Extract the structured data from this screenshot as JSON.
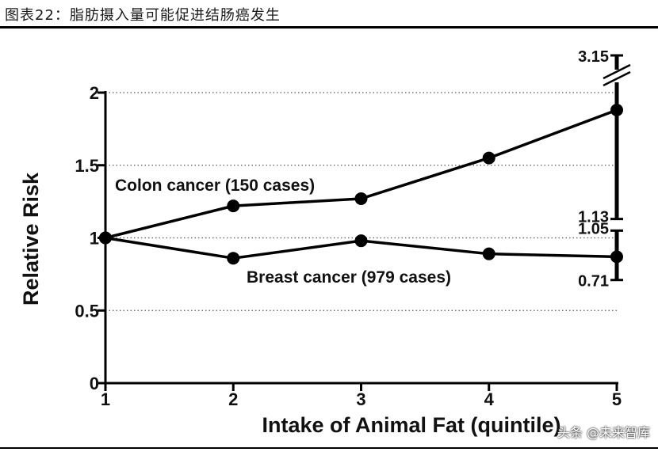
{
  "figure_title": "图表22：脂肪摄入量可能促进结肠癌发生",
  "watermark": "头条 @未来智库",
  "chart_data": {
    "type": "line",
    "xlabel": "Intake of Animal Fat (quintile)",
    "ylabel": "Relative Risk",
    "x": [
      1,
      2,
      3,
      4,
      5
    ],
    "xticks": [
      "1",
      "2",
      "3",
      "4",
      "5"
    ],
    "yticks": [
      "0",
      "0.5",
      "1",
      "1.5",
      "2"
    ],
    "ylim": [
      0,
      2
    ],
    "grid": "dotted horizontal at 0.5, 1, 1.5, 2",
    "series": [
      {
        "name": "Colon cancer (150 cases)",
        "values": [
          1.0,
          1.22,
          1.27,
          1.55,
          1.88
        ],
        "ci_last": {
          "upper_label": "3.15",
          "lower_label": "1.13",
          "upper": 3.15,
          "lower": 1.13
        }
      },
      {
        "name": "Breast cancer (979 cases)",
        "values": [
          1.0,
          0.86,
          0.98,
          0.89,
          0.87
        ],
        "ci_last": {
          "upper_label": "1.05",
          "lower_label": "0.71",
          "upper": 1.05,
          "lower": 0.71
        }
      }
    ]
  }
}
